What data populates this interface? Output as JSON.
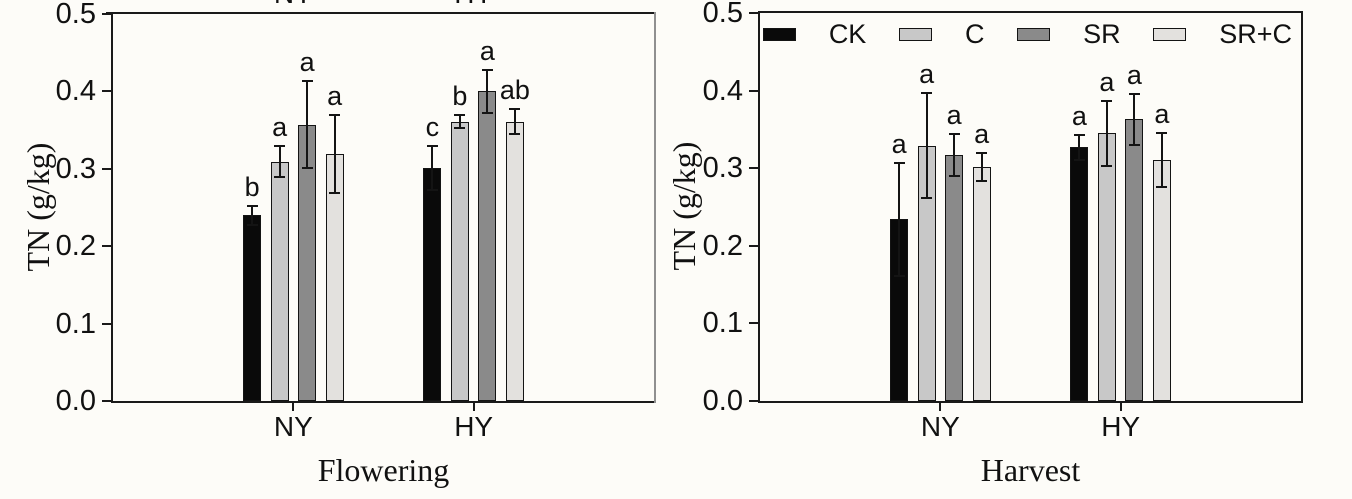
{
  "figure": {
    "background": "#fdfcf8",
    "cropped_top_labels": [
      "NY",
      "HY"
    ],
    "note_visible_text_only": "two-panel grouped bar chart with significance letters"
  },
  "colors": {
    "CK": "#0a0a0a",
    "C": "#c8c8c8",
    "SR": "#8a8a8a",
    "SR+C": "#e3e1de",
    "axis": "#1a1a1a",
    "left_panel_right_border": "#909090"
  },
  "chart_data": [
    {
      "type": "bar",
      "title": "",
      "xlabel": "Flowering",
      "ylabel": "TN (g/kg)",
      "ylim": [
        0.0,
        0.5
      ],
      "yticks": [
        0.0,
        0.1,
        0.2,
        0.3,
        0.4,
        0.5
      ],
      "ytick_labels": [
        "0.0",
        "0.1",
        "0.2",
        "0.3",
        "0.4",
        "0.5"
      ],
      "grid": false,
      "legend_position": "none",
      "categories": [
        "NY",
        "HY"
      ],
      "series": [
        {
          "name": "CK",
          "values": [
            0.24,
            0.301
          ],
          "errors": [
            0.012,
            0.028
          ],
          "letters": [
            "b",
            "c"
          ]
        },
        {
          "name": "C",
          "values": [
            0.309,
            0.361
          ],
          "errors": [
            0.02,
            0.008
          ],
          "letters": [
            "a",
            "b"
          ]
        },
        {
          "name": "SR",
          "values": [
            0.357,
            0.4
          ],
          "errors": [
            0.056,
            0.028
          ],
          "letters": [
            "a",
            "a"
          ]
        },
        {
          "name": "SR+C",
          "values": [
            0.319,
            0.361
          ],
          "errors": [
            0.05,
            0.016
          ],
          "letters": [
            "a",
            "ab"
          ]
        }
      ]
    },
    {
      "type": "bar",
      "title": "",
      "xlabel": "Harvest",
      "ylabel": "TN (g/kg)",
      "ylim": [
        0.0,
        0.5
      ],
      "yticks": [
        0.0,
        0.1,
        0.2,
        0.3,
        0.4,
        0.5
      ],
      "ytick_labels": [
        "0.0",
        "0.1",
        "0.2",
        "0.3",
        "0.4",
        "0.5"
      ],
      "grid": false,
      "legend_position": "top-inside",
      "legend_items": [
        "CK",
        "C",
        "SR",
        "SR+C"
      ],
      "categories": [
        "NY",
        "HY"
      ],
      "series": [
        {
          "name": "CK",
          "values": [
            0.234,
            0.327
          ],
          "errors": [
            0.073,
            0.016
          ],
          "letters": [
            "a",
            "a"
          ]
        },
        {
          "name": "C",
          "values": [
            0.329,
            0.345
          ],
          "errors": [
            0.068,
            0.042
          ],
          "letters": [
            "a",
            "a"
          ]
        },
        {
          "name": "SR",
          "values": [
            0.317,
            0.363
          ],
          "errors": [
            0.027,
            0.033
          ],
          "letters": [
            "a",
            "a"
          ]
        },
        {
          "name": "SR+C",
          "values": [
            0.302,
            0.311
          ],
          "errors": [
            0.018,
            0.035
          ],
          "letters": [
            "a",
            "a"
          ]
        }
      ]
    }
  ]
}
